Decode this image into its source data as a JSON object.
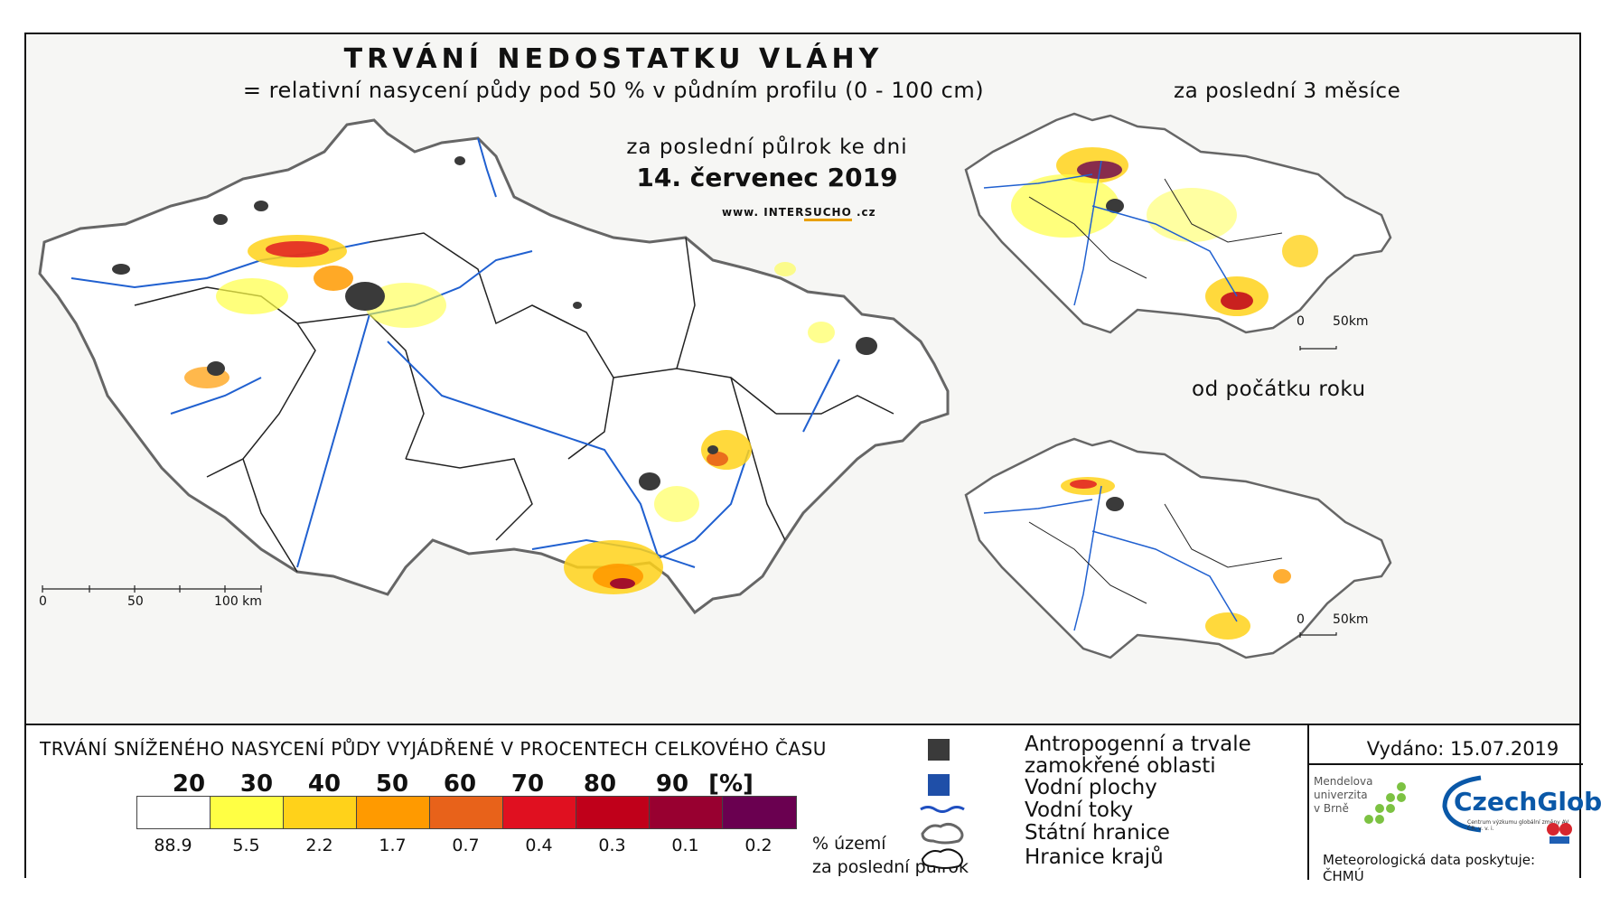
{
  "header": {
    "title": "TRVÁNÍ NEDOSTATKU VLÁHY",
    "subtitle": "= relativní nasycení půdy pod 50 % v půdním profilu (0 - 100 cm)",
    "period": "za poslední půlrok ke dni",
    "date": "14. červenec 2019",
    "website_prefix": "www. INTER",
    "website_highlight": "SUCHO",
    "website_suffix": " .cz"
  },
  "insets": [
    {
      "label": "za poslední 3 měsíce",
      "scale_start": "0",
      "scale_end": "50km"
    },
    {
      "label": "od počátku roku",
      "scale_start": "0",
      "scale_end": "50km"
    }
  ],
  "main_scale": {
    "s0": "0",
    "s1": "50",
    "s2": "100 km"
  },
  "legend": {
    "title": "TRVÁNÍ SNÍŽENÉHO NASYCENÍ PŮDY VYJÁDŘENÉ V PROCENTECH CELKOVÉHO ČASU",
    "ticks": [
      "20",
      "30",
      "40",
      "50",
      "60",
      "70",
      "80",
      "90",
      "[%]"
    ],
    "colors": [
      "#ffffff",
      "#ffff44",
      "#ffd21a",
      "#ff9a00",
      "#e8621a",
      "#e01020",
      "#c0001a",
      "#980030",
      "#6a0050"
    ],
    "percentages": [
      "88.9",
      "5.5",
      "2.2",
      "1.7",
      "0.7",
      "0.4",
      "0.3",
      "0.1",
      "0.2"
    ],
    "pct_note_line1": "% území",
    "pct_note_line2": "za poslední půlrok"
  },
  "symbols": {
    "anthropogenic_1": "Antropogenní a trvale",
    "anthropogenic_2": "zamokřené oblasti",
    "water_areas": "Vodní plochy",
    "rivers": "Vodní toky",
    "state_border": "Státní hranice",
    "region_border": "Hranice krajů",
    "anthropogenic_color": "#3a3a3a",
    "water_color": "#1f4fa8",
    "river_color": "#1f4fc0"
  },
  "credits": {
    "issued": "Vydáno: 15.07.2019",
    "mendel_1": "Mendelova",
    "mendel_2": "univerzita",
    "mendel_3": "v Brně",
    "czechglobe": "CzechGlobe",
    "czechglobe_sub": "Centrum výzkumu globální změny AV ČR, v. v. i.",
    "chmu_note": "Meteorologická data poskytuje: ČHMÚ"
  }
}
